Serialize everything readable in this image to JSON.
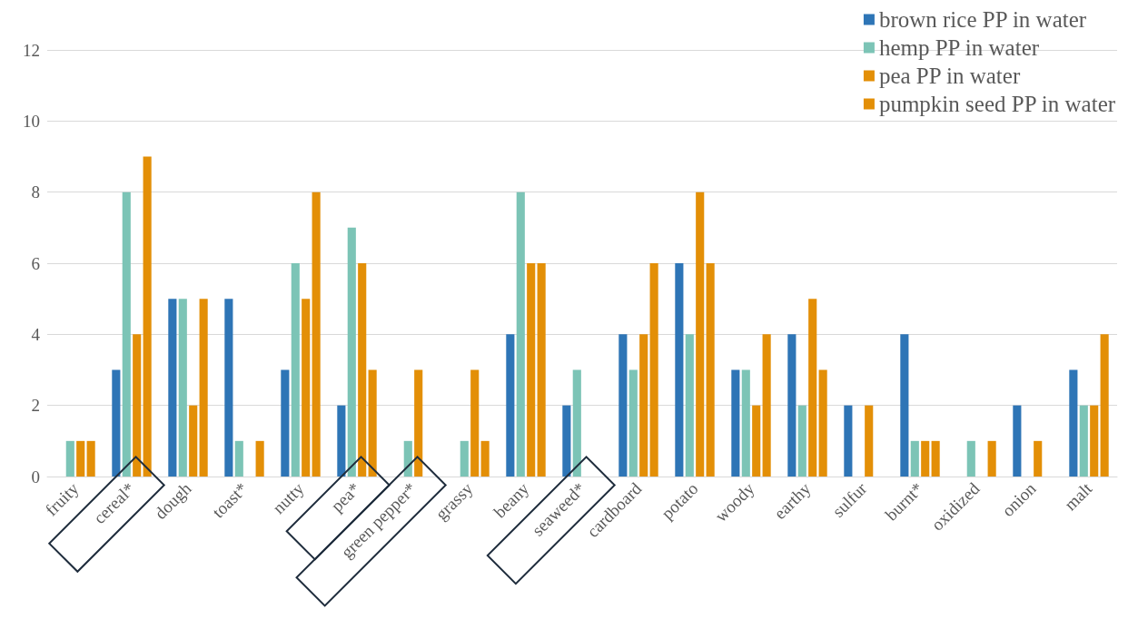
{
  "chart_data": {
    "type": "bar",
    "categories": [
      "fruity",
      "cereal*",
      "dough",
      "toast*",
      "nutty",
      "pea*",
      "green pepper*",
      "grassy",
      "beany",
      "seaweed*",
      "cardboard",
      "potato",
      "woody",
      "earthy",
      "sulfur",
      "burnt*",
      "oxidized",
      "onion",
      "malt"
    ],
    "series": [
      {
        "name": "brown rice PP in water",
        "color": "#2e75b6",
        "values": [
          0,
          3,
          5,
          5,
          3,
          2,
          0,
          0,
          4,
          2,
          4,
          6,
          3,
          4,
          2,
          4,
          0,
          2,
          3
        ]
      },
      {
        "name": "hemp PP in water",
        "color": "#7cc4b6",
        "values": [
          1,
          8,
          5,
          1,
          6,
          7,
          1,
          1,
          8,
          3,
          3,
          4,
          3,
          2,
          0,
          1,
          1,
          0,
          2
        ]
      },
      {
        "name": "pea PP in water",
        "color": "#e38f07",
        "values": [
          1,
          4,
          2,
          0,
          5,
          6,
          3,
          3,
          6,
          0,
          4,
          8,
          2,
          5,
          2,
          1,
          0,
          1,
          2
        ]
      },
      {
        "name": "pumpkin seed PP in water",
        "color": "#e38f07",
        "values": [
          1,
          9,
          5,
          1,
          8,
          3,
          0,
          1,
          6,
          0,
          6,
          6,
          4,
          3,
          0,
          1,
          1,
          0,
          4
        ]
      }
    ],
    "ylim": [
      0,
      12
    ],
    "yticks": [
      0,
      2,
      4,
      6,
      8,
      10,
      12
    ],
    "grid": "y",
    "legend": "top right"
  }
}
